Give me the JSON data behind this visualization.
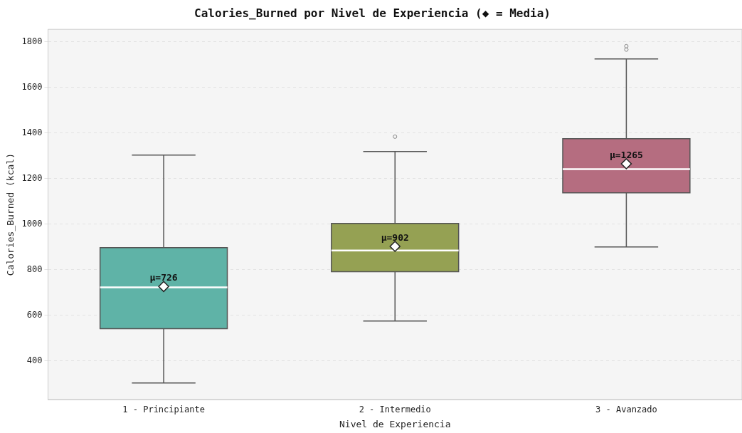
{
  "chart_data": {
    "type": "box",
    "title": "Calories_Burned por Nivel de Experiencia (◆ = Media)",
    "xlabel": "Nivel de Experiencia",
    "ylabel": "Calories_Burned (kcal)",
    "categories": [
      "1 - Principiante",
      "2 - Intermedio",
      "3 - Avanzado"
    ],
    "colors": [
      "#5fb3a7",
      "#95a153",
      "#b56d80"
    ],
    "boxes": [
      {
        "low": 303,
        "q1": 541,
        "median": 722,
        "q3": 897,
        "high": 1303,
        "mean": 726
      },
      {
        "low": 575,
        "q1": 791,
        "median": 884,
        "q3": 1003,
        "high": 1319,
        "mean": 902,
        "outliers": [
          1384
        ]
      },
      {
        "low": 900,
        "q1": 1137,
        "median": 1241,
        "q3": 1375,
        "high": 1725,
        "mean": 1265,
        "outliers": [
          1766,
          1781
        ]
      }
    ],
    "annotations": [
      "μ=726",
      "μ=902",
      "μ=1265"
    ],
    "ylim": [
      230,
      1855
    ],
    "yticks": [
      400,
      600,
      800,
      1000,
      1200,
      1400,
      1600,
      1800
    ],
    "grid": "y",
    "marker": "diamond"
  }
}
